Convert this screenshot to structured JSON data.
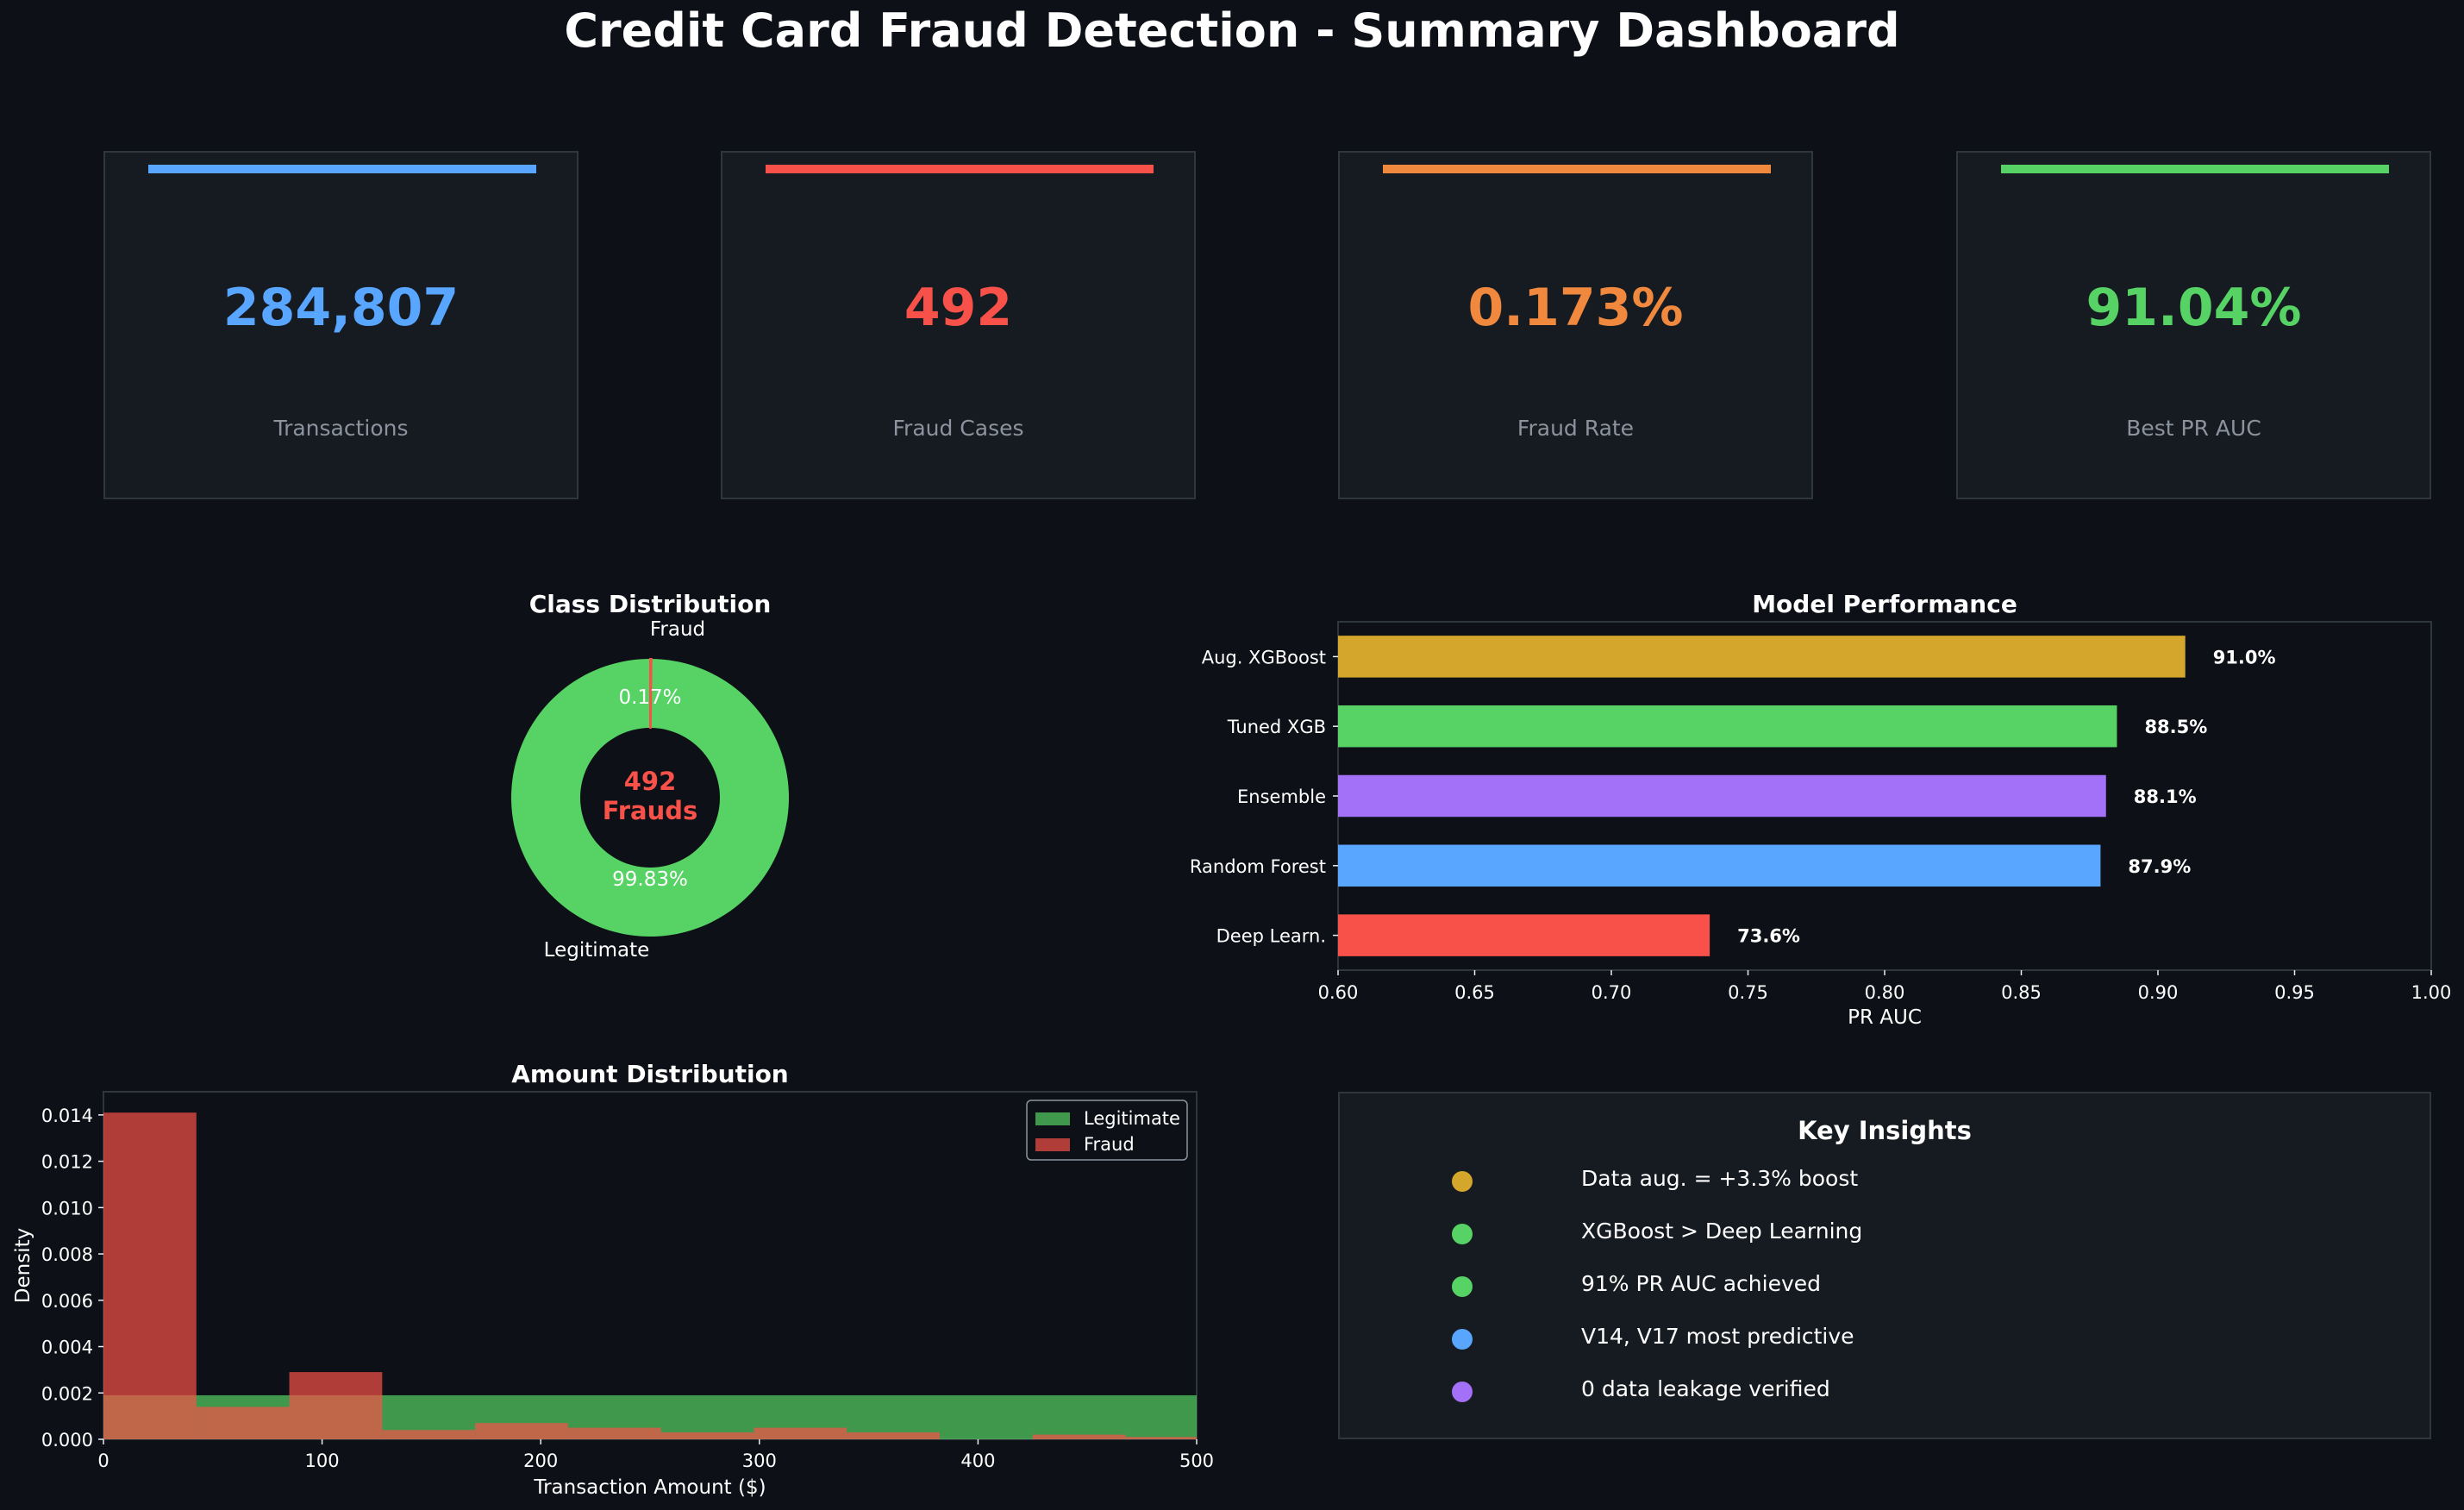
{
  "title": "Credit Card Fraud Detection - Summary Dashboard",
  "kpis": [
    {
      "value": "284,807",
      "label": "Transactions",
      "color": "#58a6ff"
    },
    {
      "value": "492",
      "label": "Fraud Cases",
      "color": "#f85149"
    },
    {
      "value": "0.173%",
      "label": "Fraud Rate",
      "color": "#f0883e"
    },
    {
      "value": "91.04%",
      "label": "Best PR AUC",
      "color": "#56d364"
    }
  ],
  "chart_data": [
    {
      "type": "pie",
      "title": "Class Distribution",
      "slices": [
        {
          "label": "Legitimate",
          "value": 99.83,
          "pct_label": "99.83%",
          "color": "#56d364"
        },
        {
          "label": "Fraud",
          "value": 0.17,
          "pct_label": "0.17%",
          "color": "#f85149"
        }
      ],
      "center_text": [
        "492",
        "Frauds"
      ]
    },
    {
      "type": "bar",
      "orientation": "horizontal",
      "title": "Model Performance",
      "xlabel": "PR AUC",
      "xlim": [
        0.6,
        1.0
      ],
      "xticks": [
        "0.60",
        "0.65",
        "0.70",
        "0.75",
        "0.80",
        "0.85",
        "0.90",
        "0.95",
        "1.00"
      ],
      "categories": [
        "Aug. XGBoost",
        "Tuned XGB",
        "Ensemble",
        "Random Forest",
        "Deep Learn."
      ],
      "values": [
        0.91,
        0.885,
        0.881,
        0.879,
        0.736
      ],
      "value_labels": [
        "91.0%",
        "88.5%",
        "88.1%",
        "87.9%",
        "73.6%"
      ],
      "colors": [
        "#d4a72c",
        "#56d364",
        "#a371f7",
        "#58a6ff",
        "#f85149"
      ]
    },
    {
      "type": "histogram",
      "title": "Amount Distribution",
      "xlabel": "Transaction Amount ($)",
      "ylabel": "Density",
      "xlim": [
        0,
        500
      ],
      "ylim": [
        0,
        0.015
      ],
      "xticks": [
        "0",
        "100",
        "200",
        "300",
        "400",
        "500"
      ],
      "yticks": [
        "0.000",
        "0.002",
        "0.004",
        "0.006",
        "0.008",
        "0.010",
        "0.012",
        "0.014"
      ],
      "legend": "top-right",
      "series": [
        {
          "name": "Legitimate",
          "color": "#56d364",
          "bins": [
            [
              0,
              500,
              0.0019
            ]
          ]
        },
        {
          "name": "Fraud",
          "color": "#f85149",
          "bins": [
            [
              0,
              42.5,
              0.0141
            ],
            [
              42.5,
              85,
              0.0014
            ],
            [
              85,
              127.5,
              0.0029
            ],
            [
              127.5,
              170,
              0.0004
            ],
            [
              170,
              212.5,
              0.0007
            ],
            [
              212.5,
              255,
              0.0005
            ],
            [
              255,
              297.5,
              0.0003
            ],
            [
              297.5,
              340,
              0.0005
            ],
            [
              340,
              382.5,
              0.0003
            ],
            [
              382.5,
              425,
              0.0
            ],
            [
              425,
              467.5,
              0.0002
            ],
            [
              467.5,
              500,
              0.0001
            ]
          ]
        }
      ]
    }
  ],
  "insights": {
    "title": "Key Insights",
    "items": [
      {
        "text": "Data aug. = +3.3% boost",
        "color": "#d4a72c"
      },
      {
        "text": "XGBoost > Deep Learning",
        "color": "#56d364"
      },
      {
        "text": "91% PR AUC achieved",
        "color": "#56d364"
      },
      {
        "text": "V14, V17 most predictive",
        "color": "#58a6ff"
      },
      {
        "text": "0 data leakage verified",
        "color": "#a371f7"
      }
    ]
  }
}
